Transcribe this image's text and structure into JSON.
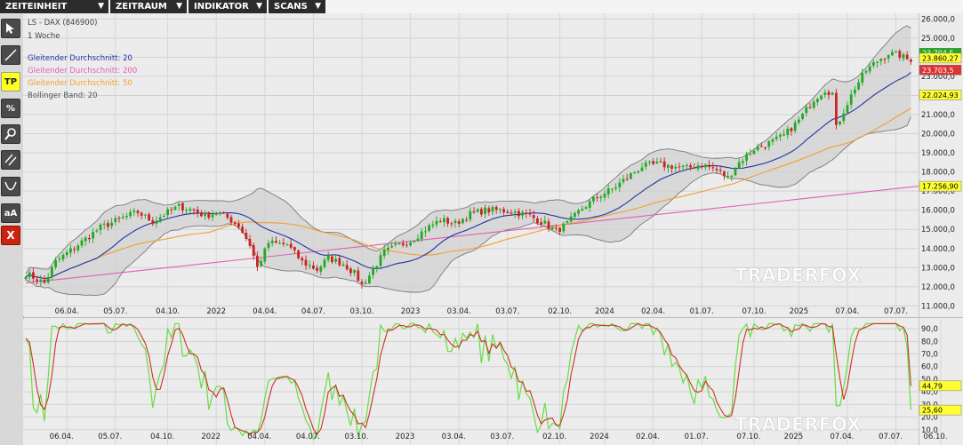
{
  "menu": [
    {
      "label": "ZEITEINHEIT",
      "arrow": "▼"
    },
    {
      "label": "ZEITRAUM",
      "arrow": "▼"
    },
    {
      "label": "INDIKATOR",
      "arrow": "▼"
    },
    {
      "label": "SCANS",
      "arrow": "▼"
    }
  ],
  "toolbar": [
    {
      "name": "cursor-tool-icon",
      "label": ""
    },
    {
      "name": "line-tool-icon",
      "label": ""
    },
    {
      "name": "tp-tool-button",
      "label": "TP"
    },
    {
      "name": "percent-tool-icon",
      "label": "%"
    },
    {
      "name": "zoom-tool-icon",
      "label": ""
    },
    {
      "name": "parallel-lines-tool-icon",
      "label": ""
    },
    {
      "name": "curve-tool-icon",
      "label": ""
    },
    {
      "name": "text-tool-button",
      "label": "aA"
    },
    {
      "name": "delete-tool-icon",
      "label": "X"
    }
  ],
  "colors": {
    "up_candle": "#22aa22",
    "down_candle": "#cc2222",
    "ma20": "#2233aa",
    "ma200": "#e060b0",
    "ma50": "#f0a030",
    "band_fill": "#d2d2d2",
    "band_line": "#7a7a7a",
    "stoch_k": "#66dd44",
    "stoch_d": "#cc3322"
  },
  "chart_data": [
    {
      "type": "candlestick",
      "instrument": "LS - DAX (846900)",
      "interval": "1 Woche",
      "watermark": "TRADERFOX",
      "legend": [
        {
          "label": "Gleitender Durchschnitt: 20",
          "color": "#2233aa"
        },
        {
          "label": "Gleitender Durchschnitt: 200",
          "color": "#e060b0"
        },
        {
          "label": "Gleitender Durchschnitt: 50",
          "color": "#f0a030"
        },
        {
          "label": "Bollinger Band: 20",
          "color": "#555555"
        }
      ],
      "y_ticks": [
        "26.000,0",
        "25.000,0",
        "24.000,0",
        "23.000,0",
        "22.000,0",
        "21.000,0",
        "20.000,0",
        "19.000,0",
        "18.000,0",
        "17.000,0",
        "16.000,0",
        "15.000,0",
        "14.000,0",
        "13.000,0",
        "12.000,0",
        "11.000,0"
      ],
      "y_tick_values": [
        26000,
        25000,
        24000,
        23000,
        22000,
        21000,
        20000,
        19000,
        18000,
        17000,
        16000,
        15000,
        14000,
        13000,
        12000,
        11000
      ],
      "ylim": [
        10600,
        26200
      ],
      "x_ticks": [
        "06.04.",
        "05.07.",
        "04.10.",
        "2022",
        "04.04.",
        "04.07.",
        "03.10.",
        "2023",
        "03.04.",
        "03.07.",
        "02.10.",
        "2024",
        "02.04.",
        "01.07.",
        "07.10.",
        "2025",
        "07.04.",
        "07.07."
      ],
      "x_tick_weeks": [
        11,
        24,
        38,
        51,
        64,
        77,
        90,
        103,
        116,
        129,
        143,
        155,
        168,
        181,
        195,
        207,
        220,
        233
      ],
      "price_tags": [
        {
          "label": "23.704,5",
          "value": 23704.5,
          "bg": "#22aa22",
          "fg": "#ffffff"
        },
        {
          "label": "23.860,27",
          "value": 23860.27,
          "bg": "#ffff33",
          "fg": "#000000"
        },
        {
          "label": "23.703,5",
          "value": 23703.5,
          "bg": "#dd3333",
          "fg": "#ffffff"
        },
        {
          "label": "22.024,93",
          "value": 22024.93,
          "bg": "#ffff33",
          "fg": "#000000"
        },
        {
          "label": "17.256,90",
          "value": 17256.9,
          "bg": "#ffff33",
          "fg": "#000000"
        }
      ],
      "anchors": [
        [
          0,
          12700
        ],
        [
          5,
          12200
        ],
        [
          8,
          13300
        ],
        [
          14,
          14200
        ],
        [
          20,
          15100
        ],
        [
          26,
          15600
        ],
        [
          30,
          15900
        ],
        [
          34,
          15400
        ],
        [
          38,
          15900
        ],
        [
          41,
          16200
        ],
        [
          45,
          16000
        ],
        [
          48,
          15700
        ],
        [
          51,
          15900
        ],
        [
          54,
          15600
        ],
        [
          57,
          15200
        ],
        [
          60,
          14200
        ],
        [
          62,
          13000
        ],
        [
          65,
          14300
        ],
        [
          70,
          14200
        ],
        [
          74,
          13300
        ],
        [
          78,
          12900
        ],
        [
          81,
          13500
        ],
        [
          85,
          13200
        ],
        [
          88,
          12700
        ],
        [
          90,
          12100
        ],
        [
          92,
          12600
        ],
        [
          96,
          13800
        ],
        [
          99,
          14100
        ],
        [
          103,
          14400
        ],
        [
          107,
          15000
        ],
        [
          111,
          15500
        ],
        [
          115,
          15300
        ],
        [
          119,
          15800
        ],
        [
          123,
          16000
        ],
        [
          127,
          16000
        ],
        [
          131,
          15900
        ],
        [
          135,
          15700
        ],
        [
          139,
          15300
        ],
        [
          142,
          14900
        ],
        [
          145,
          15300
        ],
        [
          149,
          16100
        ],
        [
          153,
          16700
        ],
        [
          157,
          17100
        ],
        [
          161,
          17700
        ],
        [
          165,
          18300
        ],
        [
          169,
          18400
        ],
        [
          173,
          18300
        ],
        [
          177,
          18200
        ],
        [
          181,
          18400
        ],
        [
          185,
          18100
        ],
        [
          188,
          17700
        ],
        [
          191,
          18500
        ],
        [
          195,
          19200
        ],
        [
          199,
          19500
        ],
        [
          203,
          19900
        ],
        [
          207,
          20700
        ],
        [
          211,
          21800
        ],
        [
          214,
          22300
        ],
        [
          216,
          22100
        ],
        [
          217,
          20300
        ],
        [
          219,
          21200
        ],
        [
          222,
          22400
        ],
        [
          225,
          23300
        ],
        [
          228,
          23800
        ],
        [
          231,
          24200
        ],
        [
          234,
          24100
        ],
        [
          236,
          23900
        ],
        [
          237,
          23760
        ]
      ],
      "ma200_line": {
        "start": [
          0,
          12200
        ],
        "end": [
          237,
          17257
        ]
      }
    },
    {
      "type": "line",
      "indicator": "stochastic",
      "y_ticks": [
        "90,0",
        "80,0",
        "70,0",
        "60,0",
        "50,0",
        "40,0",
        "30,0",
        "20,0",
        "10,0"
      ],
      "y_tick_values": [
        90,
        80,
        70,
        60,
        50,
        40,
        30,
        20,
        10
      ],
      "ylim": [
        0,
        95
      ],
      "x_ticks": [
        "06.04.",
        "05.07.",
        "04.10.",
        "2022",
        "04.04.",
        "04.07.",
        "03.10.",
        "2023",
        "03.04.",
        "03.07.",
        "02.10.",
        "2024",
        "02.04.",
        "01.07.",
        "07.10.",
        "2025",
        "07.04.",
        "07.07.",
        "06.10."
      ],
      "x_tick_weeks": [
        11,
        24,
        38,
        51,
        64,
        77,
        90,
        103,
        116,
        129,
        143,
        155,
        168,
        181,
        195,
        207,
        220,
        233,
        245
      ],
      "value_tags": [
        {
          "label": "44,79",
          "value": 44.79,
          "bg": "#ffff33",
          "fg": "#000000"
        },
        {
          "label": "25,60",
          "value": 25.6,
          "bg": "#ffff33",
          "fg": "#000000"
        }
      ],
      "watermark": "TRADERFOX"
    }
  ]
}
